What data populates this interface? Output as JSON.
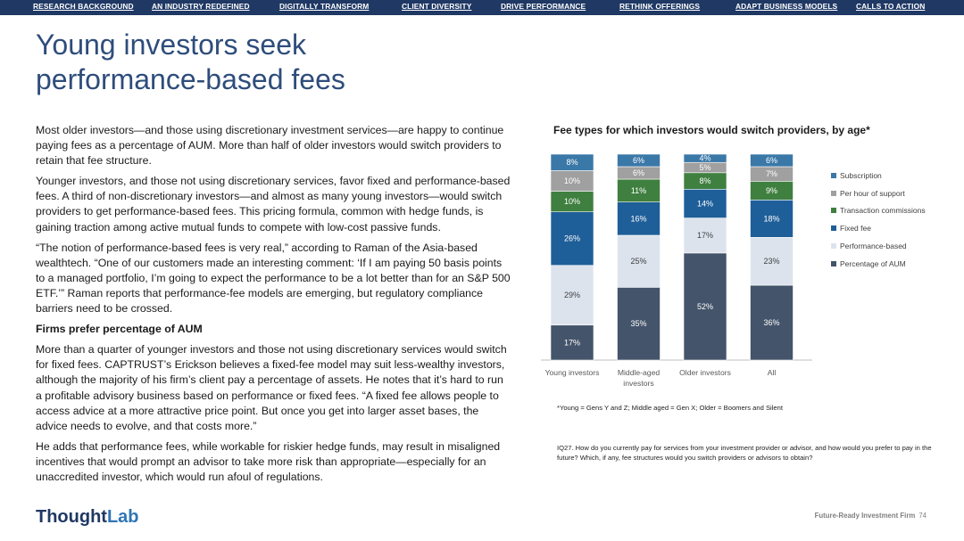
{
  "nav": {
    "items": [
      "RESEARCH BACKGROUND",
      "AN INDUSTRY REDEFINED",
      "DIGITALLY TRANSFORM",
      "CLIENT DIVERSITY",
      "DRIVE PERFORMANCE",
      "RETHINK OFFERINGS",
      "ADAPT BUSINESS MODELS",
      "CALLS TO ACTION"
    ]
  },
  "page": {
    "title": "Young investors seek performance-based fees",
    "paragraphs": [
      "Most older investors—and those using discretionary investment services—are happy to continue paying fees as a percentage of AUM. More than half of older investors would switch providers to retain that fee structure.",
      "Younger investors, and those not using discretionary services, favor fixed and performance-based fees. A third of non-discretionary investors—and almost as many young investors—would switch providers to get performance-based fees. This pricing formula, common with hedge funds, is gaining traction among active mutual funds to compete with low-cost passive funds.",
      "“The notion of performance-based fees is very real,” according to Raman of the Asia-based wealthtech. “One of our customers made an interesting comment: ‘If I am paying 50 basis points to a managed portfolio, I’m going to expect the performance to be a lot better than for an S&P 500 ETF.’” Raman reports that performance-fee models are emerging, but regulatory compliance barriers need to be crossed."
    ],
    "subheading": "Firms prefer percentage of AUM",
    "paragraphs2": [
      "More than a quarter of younger investors and those not using discretionary services would switch for fixed fees. CAPTRUST’s Erickson believes a fixed-fee model may suit less-wealthy investors, although the majority of his firm’s client pay a percentage of assets. He notes that it’s hard to run a profitable advisory business based on performance or fixed fees. “A fixed fee allows people to access advice at a more attractive price point. But once you get into larger asset bases, the advice needs to evolve, and that costs more.”",
      "He adds that performance fees, while workable for riskier hedge funds, may result in misaligned incentives that would prompt an advisor to take more risk than appropriate—especially for an unaccredited investor, which would run afoul of regulations."
    ],
    "footnote": "*Young = Gens Y and Z; Middle aged = Gen X; Older = Boomers and Silent",
    "source_note": "IQ27. How do you currently pay for services from your investment provider or advisor, and how would you prefer to pay in the future? Which, if any, fee structures would you switch providers or advisors to obtain?",
    "logo_main": "Thought",
    "logo_accent": "Lab",
    "footer_label": "Future-Ready Investment Firm",
    "page_number": "74"
  },
  "chart_data": {
    "type": "bar",
    "stacked": true,
    "title": "Fee types for which investors would switch providers, by age*",
    "categories": [
      "Young investors",
      "Middle-aged investors",
      "Older investors",
      "All"
    ],
    "series": [
      {
        "name": "Percentage of AUM",
        "values": [
          17,
          35,
          52,
          36
        ],
        "color": "#44546a"
      },
      {
        "name": "Performance-based",
        "values": [
          29,
          25,
          17,
          23
        ],
        "color": "#dce3ed"
      },
      {
        "name": "Fixed fee",
        "values": [
          26,
          16,
          14,
          18
        ],
        "color": "#1f5f99"
      },
      {
        "name": "Transaction commissions",
        "values": [
          10,
          11,
          8,
          9
        ],
        "color": "#3f7f3f"
      },
      {
        "name": "Per hour of support",
        "values": [
          10,
          6,
          5,
          7
        ],
        "color": "#a0a0a0"
      },
      {
        "name": "Subscription",
        "values": [
          8,
          6,
          4,
          6
        ],
        "color": "#3a78a8"
      }
    ],
    "value_suffix": "%",
    "legend_order": [
      "Subscription",
      "Per hour of support",
      "Transaction commissions",
      "Fixed fee",
      "Performance-based",
      "Percentage of AUM"
    ],
    "legend_position": "right"
  }
}
